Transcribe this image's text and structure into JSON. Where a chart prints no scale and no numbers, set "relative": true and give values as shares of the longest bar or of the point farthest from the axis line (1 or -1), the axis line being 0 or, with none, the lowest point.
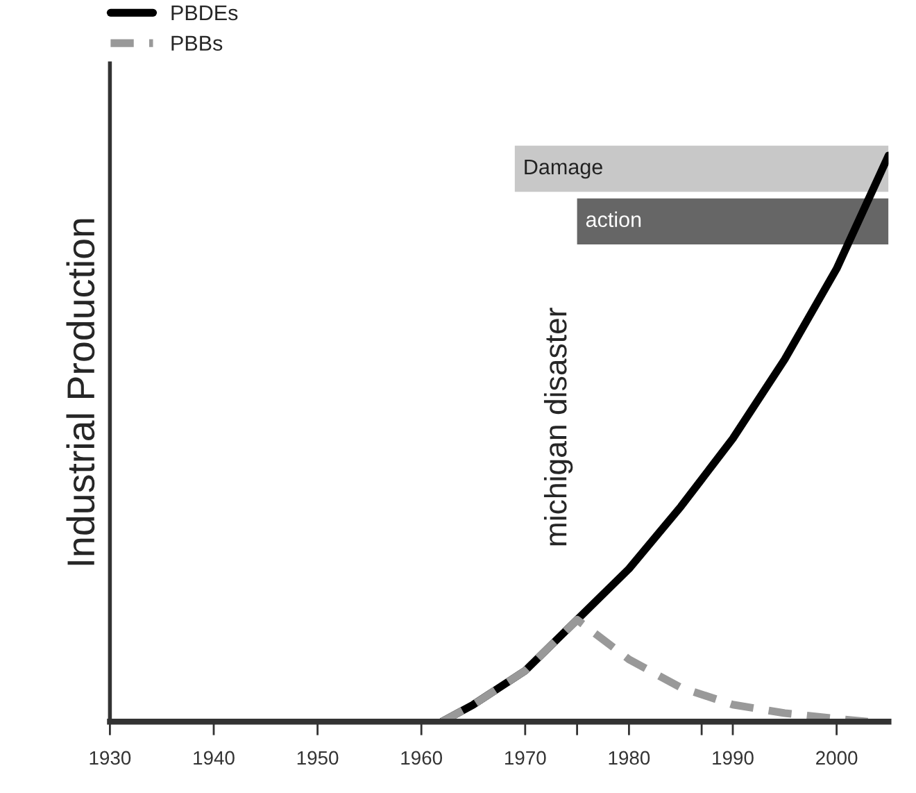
{
  "chart_data": {
    "type": "line",
    "ylabel": "Industrial Production",
    "relative": true,
    "legend": "top left",
    "grid": false,
    "xlim": [
      1930,
      2005
    ],
    "xticks": [
      1930,
      1940,
      1950,
      1960,
      1970,
      {
        "value": 1975,
        "label": null
      },
      1980,
      {
        "value": 1987,
        "label": null
      },
      1990,
      2000
    ],
    "series": [
      {
        "name": "PBDEs",
        "color": "#000000",
        "line_style": "solid",
        "x": [
          1962,
          1965,
          1970,
          1975,
          1980,
          1985,
          1990,
          1995,
          2000,
          2005
        ],
        "values": [
          0,
          0.03,
          0.09,
          0.18,
          0.27,
          0.38,
          0.5,
          0.64,
          0.8,
          1.0
        ]
      },
      {
        "name": "PBBs",
        "color": "#999999",
        "line_style": "dashed",
        "x": [
          1962,
          1965,
          1970,
          1975,
          1980,
          1985,
          1990,
          1995,
          2000,
          2003
        ],
        "values": [
          0,
          0.03,
          0.09,
          0.18,
          0.11,
          0.06,
          0.03,
          0.015,
          0.005,
          0
        ]
      }
    ],
    "bands": [
      {
        "axis": "x",
        "from": 1969,
        "to": 2005,
        "label": "Damage",
        "color": "#c8c8c8"
      },
      {
        "axis": "x",
        "from": 1975,
        "to": 2005,
        "label": "action",
        "color": "#666666"
      }
    ],
    "annotations": [
      "michigan disaster"
    ]
  }
}
